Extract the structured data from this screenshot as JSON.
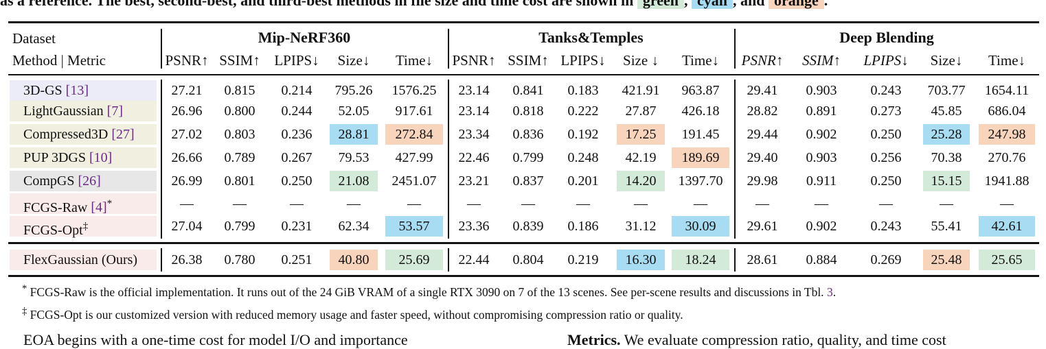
{
  "caption_tail": {
    "text": "as a reference. The best, second-best, and third-best methods in file size and time cost are shown in",
    "green": "green",
    "cyan": "cyan",
    "and": ", and",
    "orange": "orange",
    "comma": ",",
    "period": "."
  },
  "header": {
    "dataset_label": "Dataset",
    "method_metric_label": "Method | Metric",
    "groups": [
      "Mip-NeRF360",
      "Tanks&Temples",
      "Deep Blending"
    ],
    "metrics": [
      [
        "PSNR↑",
        "SSIM↑",
        "LPIPS↓",
        "Size↓",
        "Time↓"
      ],
      [
        "PSNR↑",
        "SSIM↑",
        "LPIPS↓",
        "Size ↓",
        "Time↓"
      ],
      [
        "PSNR↑",
        "SSIM↑",
        "LPIPS↓",
        "Size↓",
        "Time↓"
      ]
    ]
  },
  "colors": {
    "best": "#d4ead8",
    "second": "#a7dcf3",
    "third": "#f9d4bd",
    "row_3dgs": "#ececf8",
    "row_pruning": "#f1efdf",
    "row_compgs": "#e7e7e7",
    "row_fcgs": "#faebeb",
    "cite": "#6b2a86"
  },
  "rows": [
    {
      "method": "3D-GS",
      "cite": "[13]",
      "mark": "",
      "bg": "row_3dgs",
      "values": [
        "27.21",
        "0.815",
        "0.214",
        "795.26",
        "1576.25",
        "23.14",
        "0.841",
        "0.183",
        "421.91",
        "963.87",
        "29.41",
        "0.903",
        "0.243",
        "703.77",
        "1654.11"
      ],
      "hl": [
        "",
        "",
        "",
        "",
        "",
        "",
        "",
        "",
        "",
        "",
        "",
        "",
        "",
        "",
        ""
      ]
    },
    {
      "method": "LightGaussian",
      "cite": "[7]",
      "mark": "",
      "bg": "row_pruning",
      "values": [
        "26.96",
        "0.800",
        "0.244",
        "52.05",
        "917.61",
        "23.14",
        "0.818",
        "0.222",
        "27.87",
        "426.18",
        "28.82",
        "0.891",
        "0.273",
        "45.85",
        "686.04"
      ],
      "hl": [
        "",
        "",
        "",
        "",
        "",
        "",
        "",
        "",
        "",
        "",
        "",
        "",
        "",
        "",
        ""
      ]
    },
    {
      "method": "Compressed3D",
      "cite": "[27]",
      "mark": "",
      "bg": "row_pruning",
      "values": [
        "27.02",
        "0.803",
        "0.236",
        "28.81",
        "272.84",
        "23.34",
        "0.836",
        "0.192",
        "17.25",
        "191.45",
        "29.44",
        "0.902",
        "0.250",
        "25.28",
        "247.98"
      ],
      "hl": [
        "",
        "",
        "",
        "second",
        "third",
        "",
        "",
        "",
        "third",
        "",
        "",
        "",
        "",
        "second",
        "third"
      ]
    },
    {
      "method": "PUP 3DGS",
      "cite": "[10]",
      "mark": "",
      "bg": "row_pruning",
      "values": [
        "26.66",
        "0.789",
        "0.267",
        "79.53",
        "427.99",
        "22.46",
        "0.799",
        "0.248",
        "42.19",
        "189.69",
        "29.40",
        "0.903",
        "0.256",
        "70.38",
        "270.76"
      ],
      "hl": [
        "",
        "",
        "",
        "",
        "",
        "",
        "",
        "",
        "",
        "third",
        "",
        "",
        "",
        "",
        ""
      ]
    },
    {
      "method": "CompGS",
      "cite": "[26]",
      "mark": "",
      "bg": "row_compgs",
      "values": [
        "26.99",
        "0.801",
        "0.250",
        "21.08",
        "2451.07",
        "23.21",
        "0.837",
        "0.201",
        "14.20",
        "1397.70",
        "29.98",
        "0.911",
        "0.250",
        "15.15",
        "1941.88"
      ],
      "hl": [
        "",
        "",
        "",
        "best",
        "",
        "",
        "",
        "",
        "best",
        "",
        "",
        "",
        "",
        "best",
        ""
      ]
    },
    {
      "method": "FCGS-Raw",
      "cite": "[4]",
      "mark": "*",
      "bg": "row_fcgs",
      "values": [
        "—",
        "—",
        "—",
        "—",
        "—",
        "—",
        "—",
        "—",
        "—",
        "—",
        "—",
        "—",
        "—",
        "—",
        "—"
      ],
      "hl": [
        "",
        "",
        "",
        "",
        "",
        "",
        "",
        "",
        "",
        "",
        "",
        "",
        "",
        "",
        ""
      ]
    },
    {
      "method": "FCGS-Opt",
      "cite": "",
      "mark": "‡",
      "bg": "row_fcgs",
      "values": [
        "27.04",
        "0.799",
        "0.231",
        "62.34",
        "53.57",
        "23.36",
        "0.839",
        "0.186",
        "31.12",
        "30.09",
        "29.61",
        "0.902",
        "0.243",
        "55.41",
        "42.61"
      ],
      "hl": [
        "",
        "",
        "",
        "",
        "second",
        "",
        "",
        "",
        "",
        "second",
        "",
        "",
        "",
        "",
        "second"
      ]
    }
  ],
  "ours": {
    "method": "FlexGaussian (Ours)",
    "bg": "row_fcgs",
    "values": [
      "26.38",
      "0.780",
      "0.251",
      "40.80",
      "25.69",
      "22.44",
      "0.804",
      "0.219",
      "16.30",
      "18.24",
      "28.61",
      "0.884",
      "0.269",
      "25.48",
      "25.65"
    ],
    "hl": [
      "",
      "",
      "",
      "third",
      "best",
      "",
      "",
      "",
      "second",
      "best",
      "",
      "",
      "",
      "third",
      "best"
    ]
  },
  "footnotes": [
    {
      "mark": "*",
      "text": "FCGS-Raw is the official implementation. It runs out of the 24 GiB VRAM of a single RTX 3090 on 7 of the 13 scenes. See per-scene results and discussions in Tbl.",
      "ref": "3",
      "end": "."
    },
    {
      "mark": "‡",
      "text": "FCGS-Opt is our customized version with reduced memory usage and faster speed, without compromising compression ratio or quality."
    }
  ],
  "body_left": "EOA begins with a one-time cost for model I/O and importance",
  "body_right_bold": "Metrics.",
  "body_right": "We evaluate compression ratio, quality, and time cost"
}
